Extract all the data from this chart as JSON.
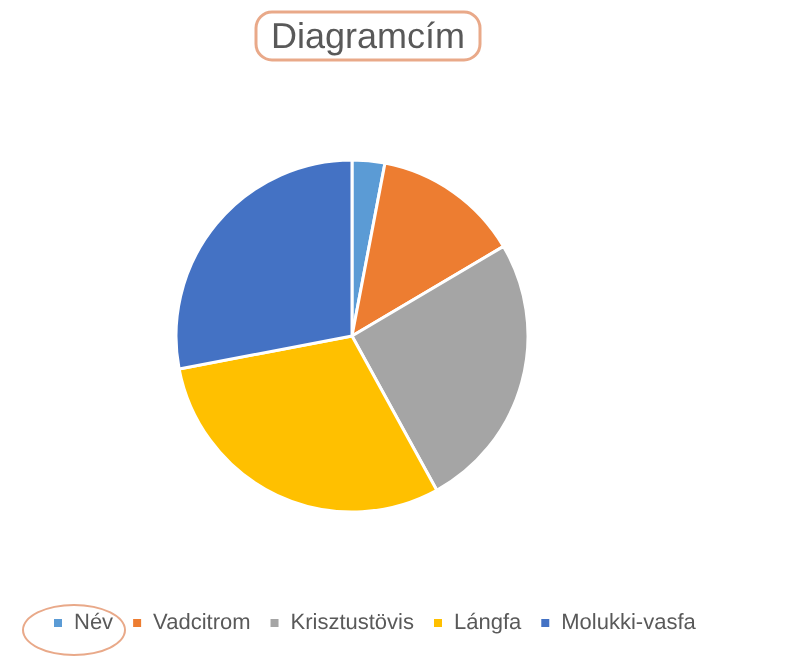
{
  "chart_data": {
    "type": "pie",
    "title": "Diagramcím",
    "categories": [
      "Név",
      "Vadcitrom",
      "Krisztustövis",
      "Lángfa",
      "Molukki-vasfa"
    ],
    "values": [
      3,
      13.5,
      25.5,
      30,
      28
    ],
    "colors": [
      "#5b9bd5",
      "#ed7d31",
      "#a5a5a5",
      "#ffc000",
      "#4472c4"
    ],
    "legend": "bottom"
  }
}
